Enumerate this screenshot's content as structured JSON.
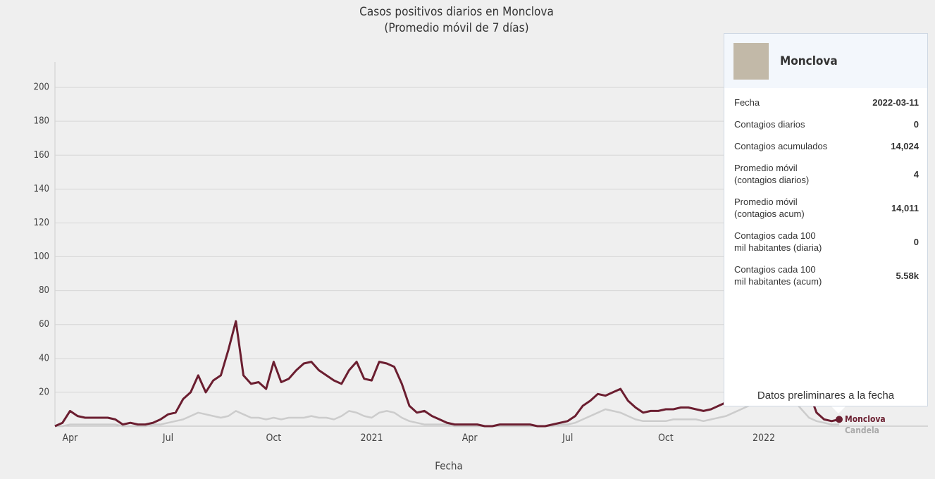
{
  "chart_data": {
    "type": "line",
    "title": "Casos positivos diarios en Monclova",
    "subtitle": "(Promedio móvil de 7 días)",
    "x_label": "Fecha",
    "categories": [
      null,
      null,
      "Apr",
      null,
      null,
      null,
      null,
      null,
      null,
      null,
      null,
      null,
      null,
      null,
      null,
      "Jul",
      null,
      null,
      null,
      null,
      null,
      null,
      null,
      null,
      null,
      null,
      null,
      null,
      null,
      "Oct",
      null,
      null,
      null,
      null,
      null,
      null,
      null,
      null,
      null,
      null,
      null,
      null,
      "2021",
      null,
      null,
      null,
      null,
      null,
      null,
      null,
      null,
      null,
      null,
      null,
      null,
      "Apr",
      null,
      null,
      null,
      null,
      null,
      null,
      null,
      null,
      null,
      null,
      null,
      null,
      "Jul",
      null,
      null,
      null,
      null,
      null,
      null,
      null,
      null,
      null,
      null,
      null,
      null,
      "Oct",
      null,
      null,
      null,
      null,
      null,
      null,
      null,
      null,
      null,
      null,
      null,
      null,
      "2022",
      null,
      null,
      null,
      null,
      null,
      null,
      null,
      null,
      null,
      null
    ],
    "series": [
      {
        "name": "Candela",
        "color": "#cccccc",
        "values": [
          0,
          0,
          1,
          1,
          1,
          1,
          1,
          1,
          1,
          0,
          0,
          0,
          0,
          1,
          1,
          2,
          3,
          4,
          6,
          8,
          7,
          6,
          5,
          6,
          9,
          7,
          5,
          5,
          4,
          5,
          4,
          5,
          5,
          5,
          6,
          5,
          5,
          4,
          6,
          9,
          8,
          6,
          5,
          8,
          9,
          8,
          5,
          3,
          2,
          1,
          1,
          1,
          1,
          0,
          0,
          0,
          0,
          0,
          0,
          0,
          0,
          0,
          0,
          0,
          0,
          0,
          0,
          1,
          1,
          2,
          4,
          6,
          8,
          10,
          9,
          8,
          6,
          4,
          3,
          3,
          3,
          3,
          4,
          4,
          4,
          4,
          3,
          4,
          5,
          6,
          8,
          10,
          12,
          15,
          18,
          20,
          22,
          20,
          15,
          10,
          5,
          3,
          2,
          1,
          1
        ]
      },
      {
        "name": "Monclova",
        "color": "#6b1e30",
        "values": [
          0,
          2,
          9,
          6,
          5,
          5,
          5,
          5,
          4,
          1,
          2,
          1,
          1,
          2,
          4,
          7,
          8,
          16,
          20,
          30,
          20,
          27,
          30,
          45,
          62,
          30,
          25,
          26,
          22,
          38,
          26,
          28,
          33,
          37,
          38,
          33,
          30,
          27,
          25,
          33,
          38,
          28,
          27,
          38,
          37,
          35,
          25,
          12,
          8,
          9,
          6,
          4,
          2,
          1,
          1,
          1,
          1,
          0,
          0,
          1,
          1,
          1,
          1,
          1,
          0,
          0,
          1,
          2,
          3,
          6,
          12,
          15,
          19,
          18,
          20,
          22,
          15,
          11,
          8,
          9,
          9,
          10,
          10,
          11,
          11,
          10,
          9,
          10,
          12,
          14,
          16,
          18,
          20,
          25,
          30,
          35,
          40,
          45,
          40,
          30,
          20,
          8,
          4,
          3,
          4
        ]
      }
    ],
    "ylim": [
      0,
      215
    ],
    "yticks": [
      20,
      40,
      60,
      80,
      100,
      120,
      140,
      160,
      180,
      200
    ],
    "grid": true
  },
  "tooltip": {
    "title": "Monclova",
    "rows": [
      [
        "Fecha",
        "2022-03-11"
      ],
      [
        "Contagios diarios",
        "0"
      ],
      [
        "Contagios acumulados",
        "14,024"
      ],
      [
        "Promedio móvil (contagios diarios)",
        "4"
      ],
      [
        "Promedio móvil (contagios acum)",
        "14,011"
      ],
      [
        "Contagios cada 100 mil habitantes (diaria)",
        "0"
      ],
      [
        "Contagios cada 100 mil habitantes (acum)",
        "5.58k"
      ]
    ],
    "footer": "Datos preliminares a la fecha"
  }
}
